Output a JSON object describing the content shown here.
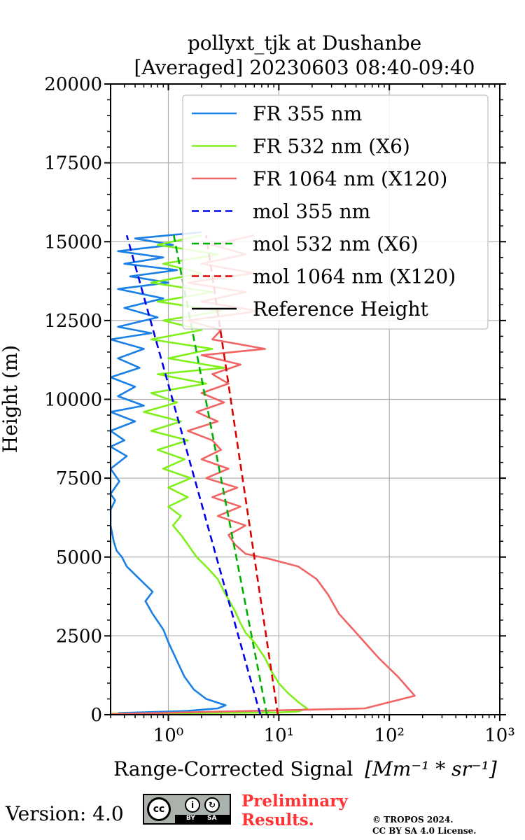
{
  "chart_data": {
    "type": "line",
    "title_line1": "pollyxt_tjk at Dushanbe",
    "title_line2": "[Averaged] 20230603 08:40-09:40",
    "xlabel": "Range-Corrected Signal",
    "xlabel_unit": "[Mm⁻¹ * sr⁻¹]",
    "ylabel": "Height (m)",
    "xscale": "log",
    "xlim": [
      0.3,
      1000
    ],
    "ylim": [
      0,
      20000
    ],
    "grid": true,
    "legend_position": "top-right",
    "x_ticks": [
      {
        "value": 1,
        "label": "10⁰"
      },
      {
        "value": 10,
        "label": "10¹"
      },
      {
        "value": 100,
        "label": "10²"
      },
      {
        "value": 1000,
        "label": "10³"
      }
    ],
    "y_ticks": [
      {
        "value": 0,
        "label": "0"
      },
      {
        "value": 2500,
        "label": "2500"
      },
      {
        "value": 5000,
        "label": "5000"
      },
      {
        "value": 7500,
        "label": "7500"
      },
      {
        "value": 10000,
        "label": "10000"
      },
      {
        "value": 12500,
        "label": "12500"
      },
      {
        "value": 15000,
        "label": "15000"
      },
      {
        "value": 17500,
        "label": "17500"
      },
      {
        "value": 20000,
        "label": "20000"
      }
    ],
    "series": [
      {
        "name": "FR 355 nm",
        "color": "#1a80e6",
        "dash": "solid",
        "points": [
          [
            0.35,
            50
          ],
          [
            1.5,
            120
          ],
          [
            2.8,
            200
          ],
          [
            3.3,
            300
          ],
          [
            2.2,
            500
          ],
          [
            1.7,
            800
          ],
          [
            1.4,
            1200
          ],
          [
            1.2,
            1700
          ],
          [
            1.0,
            2300
          ],
          [
            0.9,
            2700
          ],
          [
            0.72,
            3200
          ],
          [
            0.62,
            3600
          ],
          [
            0.72,
            3900
          ],
          [
            0.55,
            4300
          ],
          [
            0.42,
            4700
          ],
          [
            0.38,
            5000
          ],
          [
            0.34,
            5200
          ],
          [
            0.32,
            5500
          ],
          [
            0.3,
            6000
          ],
          [
            0.3,
            6500
          ],
          [
            0.33,
            6800
          ],
          [
            0.3,
            7000
          ],
          [
            0.36,
            7400
          ],
          [
            0.3,
            7800
          ],
          [
            0.42,
            8200
          ],
          [
            0.3,
            8500
          ],
          [
            0.4,
            8700
          ],
          [
            0.3,
            9000
          ],
          [
            0.5,
            9300
          ],
          [
            0.3,
            9600
          ],
          [
            0.6,
            9800
          ],
          [
            0.35,
            10100
          ],
          [
            0.5,
            10400
          ],
          [
            0.3,
            10700
          ],
          [
            0.55,
            11000
          ],
          [
            0.35,
            11300
          ],
          [
            0.6,
            11600
          ],
          [
            0.3,
            11900
          ],
          [
            0.7,
            12100
          ],
          [
            0.35,
            12300
          ],
          [
            0.8,
            12600
          ],
          [
            0.4,
            12900
          ],
          [
            0.9,
            13200
          ],
          [
            0.35,
            13500
          ],
          [
            1.0,
            13700
          ],
          [
            0.45,
            13900
          ],
          [
            1.2,
            14100
          ],
          [
            0.4,
            14300
          ],
          [
            0.9,
            14500
          ],
          [
            0.35,
            14700
          ],
          [
            1.1,
            14900
          ],
          [
            0.5,
            15100
          ],
          [
            2.0,
            15300
          ]
        ]
      },
      {
        "name": "FR 532 nm (X6)",
        "color": "#80f01a",
        "dash": "solid",
        "points": [
          [
            0.3,
            30
          ],
          [
            10,
            70
          ],
          [
            15,
            100
          ],
          [
            18,
            200
          ],
          [
            15,
            400
          ],
          [
            12,
            700
          ],
          [
            10,
            1000
          ],
          [
            8.5,
            1400
          ],
          [
            7.5,
            1800
          ],
          [
            6,
            2300
          ],
          [
            5,
            2600
          ],
          [
            4.5,
            2900
          ],
          [
            4,
            3300
          ],
          [
            3.2,
            3900
          ],
          [
            2.8,
            4300
          ],
          [
            2.2,
            4700
          ],
          [
            1.8,
            5000
          ],
          [
            1.5,
            5400
          ],
          [
            1.3,
            5700
          ],
          [
            1.1,
            6000
          ],
          [
            1.3,
            6300
          ],
          [
            1.0,
            6600
          ],
          [
            1.5,
            6900
          ],
          [
            1.0,
            7200
          ],
          [
            1.6,
            7500
          ],
          [
            0.9,
            7800
          ],
          [
            1.4,
            8100
          ],
          [
            0.8,
            8400
          ],
          [
            1.5,
            8700
          ],
          [
            0.7,
            9000
          ],
          [
            1.3,
            9300
          ],
          [
            0.6,
            9600
          ],
          [
            1.2,
            9900
          ],
          [
            0.7,
            10200
          ],
          [
            2.2,
            10500
          ],
          [
            0.8,
            10800
          ],
          [
            3.2,
            11000
          ],
          [
            1.0,
            11300
          ],
          [
            2.5,
            11600
          ],
          [
            0.7,
            11900
          ],
          [
            2.0,
            12200
          ],
          [
            0.9,
            12500
          ],
          [
            3.0,
            12800
          ],
          [
            0.8,
            13100
          ],
          [
            2.5,
            13400
          ],
          [
            0.7,
            13700
          ],
          [
            2.0,
            14000
          ],
          [
            0.9,
            14300
          ],
          [
            2.8,
            14600
          ],
          [
            0.8,
            14900
          ],
          [
            2.0,
            15200
          ]
        ]
      },
      {
        "name": "FR 1064 nm (X120)",
        "color": "#f06464",
        "dash": "solid",
        "points": [
          [
            0.3,
            20
          ],
          [
            60,
            200
          ],
          [
            170,
            600
          ],
          [
            120,
            1200
          ],
          [
            80,
            1800
          ],
          [
            50,
            2600
          ],
          [
            35,
            3200
          ],
          [
            28,
            3800
          ],
          [
            22,
            4300
          ],
          [
            15,
            4700
          ],
          [
            8,
            4950
          ],
          [
            5,
            5100
          ],
          [
            4,
            5400
          ],
          [
            3.5,
            5700
          ],
          [
            5,
            6000
          ],
          [
            2.8,
            6300
          ],
          [
            4.5,
            6600
          ],
          [
            2.5,
            6900
          ],
          [
            4.2,
            7200
          ],
          [
            2.2,
            7500
          ],
          [
            3.5,
            7800
          ],
          [
            2.0,
            8100
          ],
          [
            3.0,
            8400
          ],
          [
            2.5,
            8700
          ],
          [
            1.5,
            9000
          ],
          [
            2.8,
            9300
          ],
          [
            1.8,
            9600
          ],
          [
            3.2,
            9900
          ],
          [
            2.0,
            10200
          ],
          [
            3.5,
            10500
          ],
          [
            2.5,
            10800
          ],
          [
            4.5,
            11100
          ],
          [
            2.0,
            11400
          ],
          [
            7.5,
            11600
          ],
          [
            2.5,
            11900
          ],
          [
            3.0,
            12200
          ],
          [
            1.5,
            12500
          ],
          [
            6.5,
            12800
          ],
          [
            2.0,
            13100
          ],
          [
            5.0,
            13400
          ],
          [
            1.5,
            13700
          ],
          [
            6.0,
            14000
          ],
          [
            2.0,
            14300
          ],
          [
            5.0,
            14600
          ],
          [
            2.5,
            14900
          ],
          [
            6.0,
            15200
          ]
        ]
      },
      {
        "name": "mol 355 nm",
        "color": "#0000ee",
        "dash": "dashed",
        "points": [
          [
            6.8,
            0
          ],
          [
            0.42,
            15200
          ]
        ]
      },
      {
        "name": "mol 532 nm (X6)",
        "color": "#00b000",
        "dash": "dashed",
        "points": [
          [
            7.8,
            0
          ],
          [
            1.12,
            15200
          ]
        ]
      },
      {
        "name": "mol 1064 nm (X120)",
        "color": "#dd0000",
        "dash": "dashed",
        "points": [
          [
            9.8,
            0
          ],
          [
            2.2,
            15200
          ]
        ]
      },
      {
        "name": "Reference Height",
        "color": "#000000",
        "dash": "solid",
        "points": []
      }
    ]
  },
  "footer": {
    "version": "Version: 4.0",
    "license_badge_icon": "cc-by-sa-icon",
    "cc_text": "cc",
    "by_text": "BY",
    "sa_text": "SA",
    "preliminary_line1": "Preliminary",
    "preliminary_line2": "Results.",
    "copyright_line1": "© TROPOS 2024.",
    "copyright_line2": "CC BY SA 4.0 License."
  }
}
